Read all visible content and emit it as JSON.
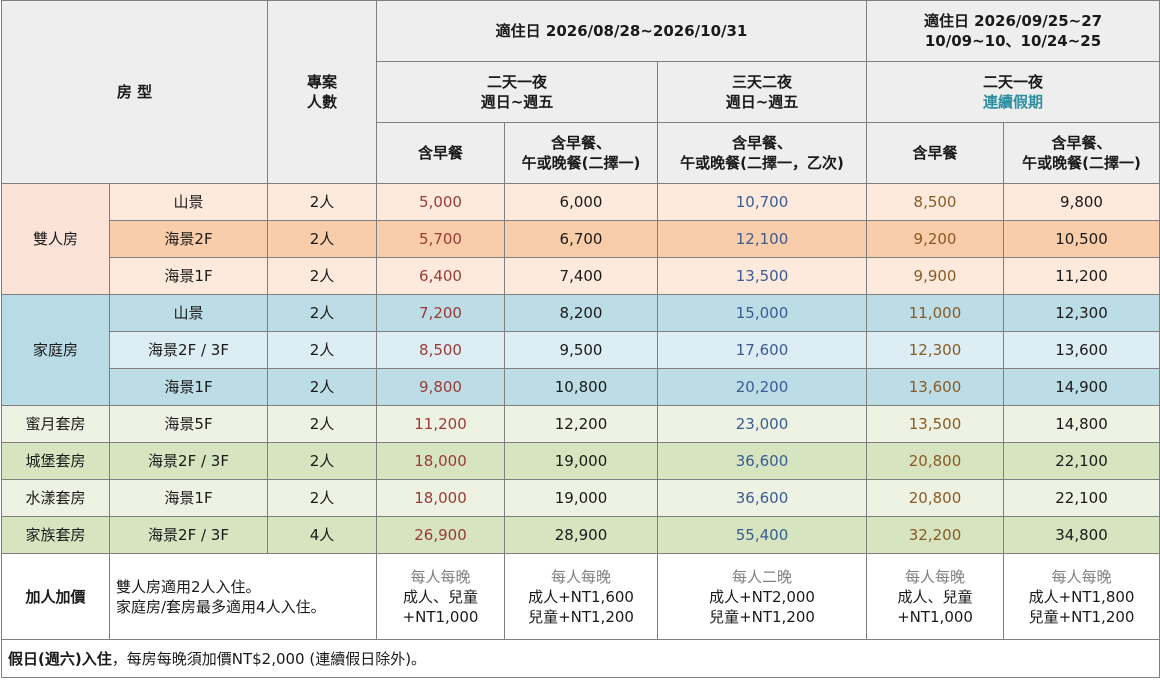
{
  "header": {
    "room_type": "房 型",
    "persons_line1": "專案",
    "persons_line2": "人數",
    "period1": "適住日 2026/08/28~2026/10/31",
    "period2_line1": "適住日 2026/09/25~27",
    "period2_line2": "10/09~10、10/24~25",
    "plan_2d1n": "二天一夜",
    "plan_3d2n": "三天二夜",
    "weekday": "週日~週五",
    "holiday": "連續假期",
    "col_breakfast": "含早餐",
    "col_meal_line1": "含早餐、",
    "col_meal_line2": "午或晚餐(二擇一)",
    "col_meal_3d_line2": "午或晚餐(二擇一，乙次)"
  },
  "groups": {
    "double": "雙人房",
    "family": "家庭房"
  },
  "rows": [
    {
      "type": "",
      "view": "山景",
      "persons": "2人",
      "p1": "5,000",
      "p2": "6,000",
      "p3": "10,700",
      "p4": "8,500",
      "p5": "9,800"
    },
    {
      "type": "",
      "view": "海景2F",
      "persons": "2人",
      "p1": "5,700",
      "p2": "6,700",
      "p3": "12,100",
      "p4": "9,200",
      "p5": "10,500"
    },
    {
      "type": "",
      "view": "海景1F",
      "persons": "2人",
      "p1": "6,400",
      "p2": "7,400",
      "p3": "13,500",
      "p4": "9,900",
      "p5": "11,200"
    },
    {
      "type": "",
      "view": "山景",
      "persons": "2人",
      "p1": "7,200",
      "p2": "8,200",
      "p3": "15,000",
      "p4": "11,000",
      "p5": "12,300"
    },
    {
      "type": "",
      "view": "海景2F / 3F",
      "persons": "2人",
      "p1": "8,500",
      "p2": "9,500",
      "p3": "17,600",
      "p4": "12,300",
      "p5": "13,600"
    },
    {
      "type": "",
      "view": "海景1F",
      "persons": "2人",
      "p1": "9,800",
      "p2": "10,800",
      "p3": "20,200",
      "p4": "13,600",
      "p5": "14,900"
    },
    {
      "type": "蜜月套房",
      "view": "海景5F",
      "persons": "2人",
      "p1": "11,200",
      "p2": "12,200",
      "p3": "23,000",
      "p4": "13,500",
      "p5": "14,800"
    },
    {
      "type": "城堡套房",
      "view": "海景2F / 3F",
      "persons": "2人",
      "p1": "18,000",
      "p2": "19,000",
      "p3": "36,600",
      "p4": "20,800",
      "p5": "22,100"
    },
    {
      "type": "水漾套房",
      "view": "海景1F",
      "persons": "2人",
      "p1": "18,000",
      "p2": "19,000",
      "p3": "36,600",
      "p4": "20,800",
      "p5": "22,100"
    },
    {
      "type": "家族套房",
      "view": "海景2F / 3F",
      "persons": "4人",
      "p1": "26,900",
      "p2": "28,900",
      "p3": "55,400",
      "p4": "32,200",
      "p5": "34,800"
    }
  ],
  "addon": {
    "label": "加人加價",
    "desc_line1": "雙人房適用2人入住。",
    "desc_line2": "家庭房/套房最多適用4人入住。",
    "c1": {
      "l1": "每人每晚",
      "l2": "成人、兒童",
      "l3": "+NT1,000"
    },
    "c2": {
      "l1": "每人每晚",
      "l2": "成人+NT1,600",
      "l3": "兒童+NT1,200"
    },
    "c3": {
      "l1": "每人二晚",
      "l2": "成人+NT2,000",
      "l3": "兒童+NT1,200"
    },
    "c4": {
      "l1": "每人每晚",
      "l2": "成人、兒童",
      "l3": "+NT1,000"
    },
    "c5": {
      "l1": "每人每晚",
      "l2": "成人+NT1,800",
      "l3": "兒童+NT1,200"
    }
  },
  "footnote": {
    "bold": "假日(週六)入住",
    "rest": "，每房每晚須加價NT$2,000 (連續假日除外)。"
  }
}
